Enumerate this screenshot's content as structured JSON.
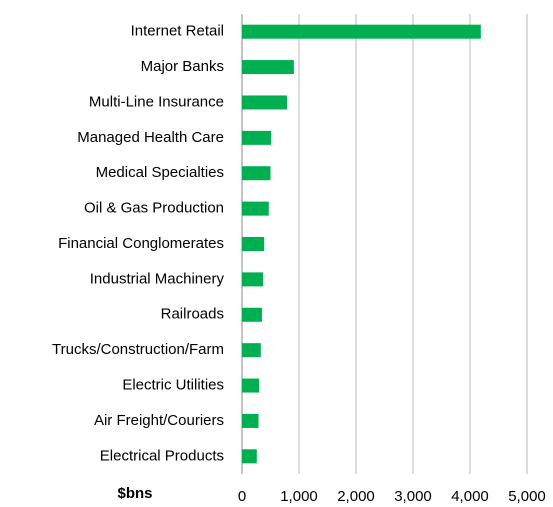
{
  "chart_data": {
    "type": "hbar",
    "x_label": "$bns",
    "categories": [
      "Internet Retail",
      "Major Banks",
      "Multi-Line Insurance",
      "Managed Health Care",
      "Medical Specialties",
      "Oil & Gas Production",
      "Financial Conglomerates",
      "Industrial Machinery",
      "Railroads",
      "Trucks/Construction/Farm",
      "Electric Utilities",
      "Air Freight/Couriers",
      "Electrical Products"
    ],
    "values": [
      4190,
      910,
      790,
      510,
      500,
      470,
      390,
      370,
      350,
      330,
      300,
      290,
      260
    ],
    "color": "#00b050",
    "xlim": [
      0,
      5000
    ],
    "xticks": [
      0,
      {
        "value": 1000,
        "label": "1,000"
      },
      {
        "value": 2000,
        "label": "2,000"
      },
      {
        "value": 3000,
        "label": "3,000"
      },
      {
        "value": 4000,
        "label": "4,000"
      },
      {
        "value": 5000,
        "label": "5,000"
      }
    ],
    "grid": true
  }
}
